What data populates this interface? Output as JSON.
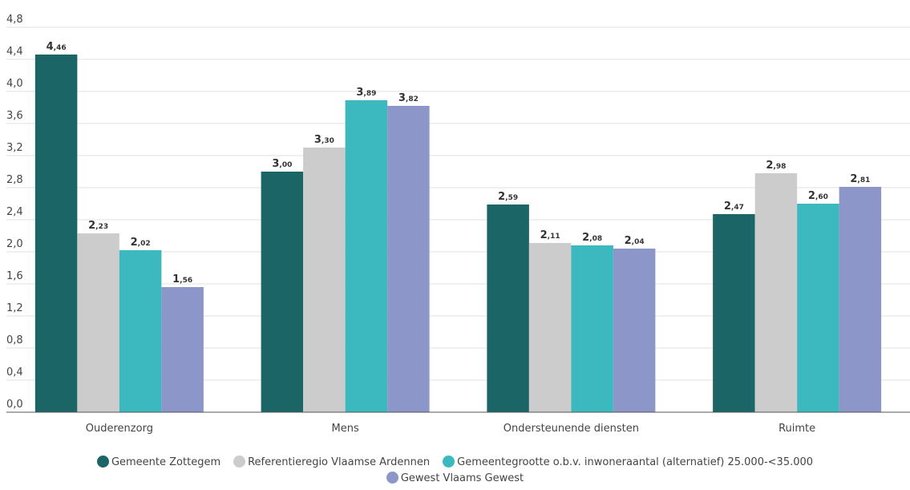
{
  "chart_data": {
    "type": "bar",
    "title": "",
    "xlabel": "",
    "ylabel": "",
    "ylim": [
      0,
      4.8
    ],
    "yticks": [
      "0,0",
      "0,4",
      "0,8",
      "1,2",
      "1,6",
      "2,0",
      "2,4",
      "2,8",
      "3,2",
      "3,6",
      "4,0",
      "4,4",
      "4,8"
    ],
    "categories": [
      "Ouderenzorg",
      "Mens",
      "Ondersteunende diensten",
      "Ruimte"
    ],
    "series": [
      {
        "name": "Gemeente Zottegem",
        "color": "#1b6566",
        "values": [
          4.46,
          3.0,
          2.59,
          2.47
        ],
        "labels": [
          [
            "4",
            ",46"
          ],
          [
            "3",
            ",00"
          ],
          [
            "2",
            ",59"
          ],
          [
            "2",
            ",47"
          ]
        ]
      },
      {
        "name": "Referentieregio Vlaamse Ardennen",
        "color": "#cccccc",
        "values": [
          2.23,
          3.3,
          2.11,
          2.98
        ],
        "labels": [
          [
            "2",
            ",23"
          ],
          [
            "3",
            ",30"
          ],
          [
            "2",
            ",11"
          ],
          [
            "2",
            ",98"
          ]
        ]
      },
      {
        "name": "Gemeentegrootte o.b.v. inwoneraantal (alternatief) 25.000-<35.000",
        "color": "#3cb9bf",
        "values": [
          2.02,
          3.89,
          2.08,
          2.6
        ],
        "labels": [
          [
            "2",
            ",02"
          ],
          [
            "3",
            ",89"
          ],
          [
            "2",
            ",08"
          ],
          [
            "2",
            ",60"
          ]
        ]
      },
      {
        "name": "Gewest Vlaams Gewest",
        "color": "#8c96c8",
        "values": [
          1.56,
          3.82,
          2.04,
          2.81
        ],
        "labels": [
          [
            "1",
            ",56"
          ],
          [
            "3",
            ",82"
          ],
          [
            "2",
            ",04"
          ],
          [
            "2",
            ",81"
          ]
        ]
      }
    ],
    "grid": true,
    "legend_position": "bottom"
  }
}
